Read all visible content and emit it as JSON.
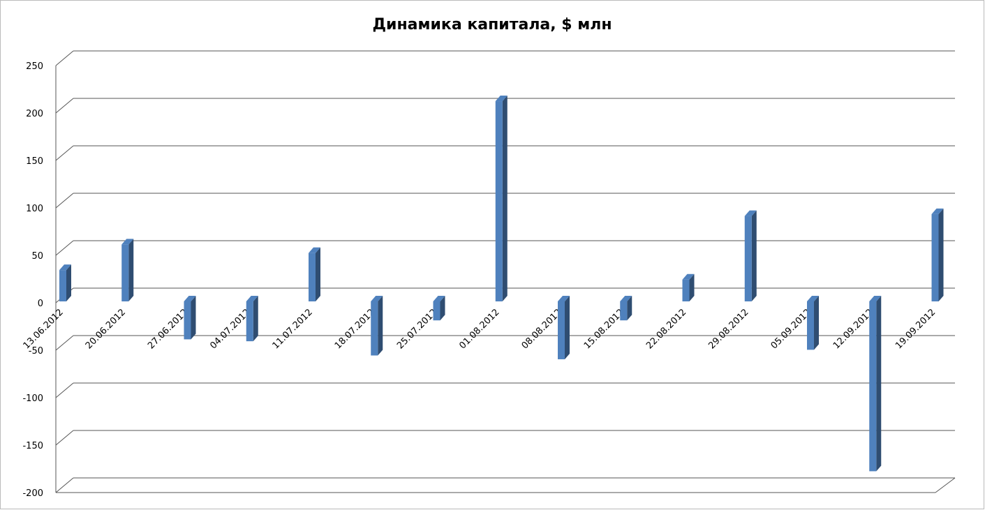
{
  "chart_data": {
    "type": "bar3d",
    "title": "Динамика капитала, $ млн",
    "categories": [
      "13.06.2012",
      "20.06.2012",
      "27.06.2012",
      "04.07.2012",
      "11.07.2012",
      "18.07.2012",
      "25.07.2012",
      "01.08.2012",
      "08.08.2012",
      "15.08.2012",
      "22.08.2012",
      "29.08.2012",
      "05.09.2012",
      "12.09.2012",
      "19.09.2012"
    ],
    "values": [
      33,
      60,
      -40,
      -42,
      51,
      -57,
      -20,
      211,
      -61,
      -20,
      23,
      90,
      -51,
      -179,
      92
    ],
    "color": "#4f81bd",
    "ylim": [
      -200,
      250
    ],
    "yticks": [
      -200,
      -150,
      -100,
      -50,
      0,
      50,
      100,
      150,
      200,
      250
    ],
    "grid": true
  }
}
